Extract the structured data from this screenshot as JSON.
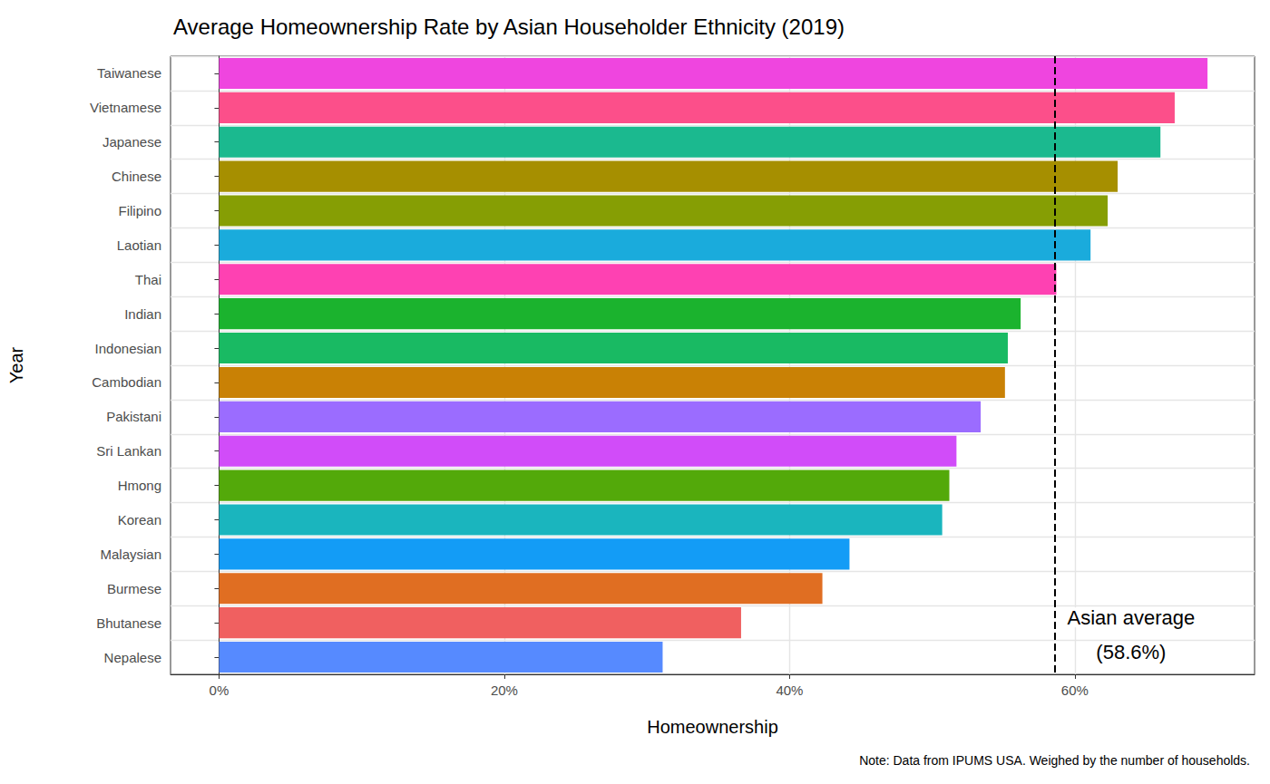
{
  "chart_data": {
    "type": "bar",
    "orientation": "horizontal",
    "title": "Average Homeownership Rate by Asian Householder Ethnicity (2019)",
    "x_label": "Homeownership",
    "y_label": "Year",
    "note": "Note: Data from IPUMS USA. Weighed by the number of households.",
    "categories": [
      "Taiwanese",
      "Vietnamese",
      "Japanese",
      "Chinese",
      "Filipino",
      "Laotian",
      "Thai",
      "Indian",
      "Indonesian",
      "Cambodian",
      "Pakistani",
      "Sri Lankan",
      "Hmong",
      "Korean",
      "Malaysian",
      "Burmese",
      "Bhutanese",
      "Nepalese"
    ],
    "values": [
      69.3,
      67.0,
      66.0,
      63.0,
      62.3,
      61.1,
      58.7,
      56.2,
      55.3,
      55.1,
      53.4,
      51.7,
      51.2,
      50.7,
      44.2,
      42.3,
      36.6,
      31.1
    ],
    "colors": [
      "#EF45DF",
      "#FC4F8A",
      "#1BB98F",
      "#A68F00",
      "#869E04",
      "#1AABDC",
      "#FE41B2",
      "#1BB32E",
      "#19BA63",
      "#C98105",
      "#9B6CFF",
      "#D14CF9",
      "#53A90A",
      "#1AB5BE",
      "#139CF6",
      "#E06E22",
      "#F06060",
      "#568AFF"
    ],
    "xlim": [
      -3.4,
      72.6
    ],
    "xticks": [
      {
        "value": 0,
        "label": "0%"
      },
      {
        "value": 20,
        "label": "20%"
      },
      {
        "value": 40,
        "label": "40%"
      },
      {
        "value": 60,
        "label": "60%"
      }
    ],
    "grid": true,
    "reference_line": {
      "value": 58.6,
      "line_style": "dashed",
      "label": [
        "Asian average",
        "(58.6%)"
      ]
    }
  }
}
